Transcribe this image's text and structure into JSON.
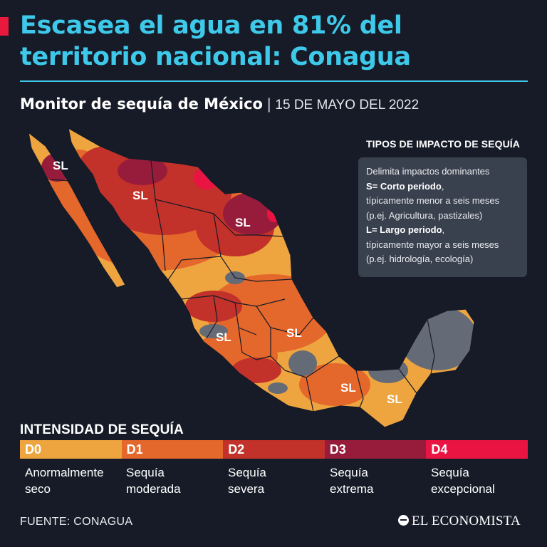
{
  "header": {
    "headline": "Escasea el agua en 81% del territorio nacional: Conagua",
    "subtitle": "Monitor de sequía de México",
    "separator": "|",
    "date": "15 DE MAYO DEL 2022"
  },
  "map": {
    "region_labels": [
      "SL",
      "SL",
      "SL",
      "SL",
      "SL",
      "SL",
      "SL"
    ]
  },
  "impact_types": {
    "title": "TIPOS DE IMPACTO DE SEQUÍA",
    "line1": "Delimita impactos dominantes",
    "short_label": "S= Corto periodo",
    "short_suffix": ",",
    "short_desc": "típicamente menor a seis meses",
    "short_examples": "(p.ej. Agricultura, pastizales)",
    "long_label": "L= Largo periodo",
    "long_suffix": ",",
    "long_desc": "típicamente mayor a seis meses",
    "long_examples": "(p.ej. hidrología, ecología)"
  },
  "legend": {
    "title": "INTENSIDAD DE SEQUÍA",
    "items": [
      {
        "code": "D0",
        "label_line1": "Anormalmente",
        "label_line2": "seco",
        "color": "#eea540"
      },
      {
        "code": "D1",
        "label_line1": "Sequía",
        "label_line2": "moderada",
        "color": "#e4672c"
      },
      {
        "code": "D2",
        "label_line1": "Sequía",
        "label_line2": "severa",
        "color": "#c2312a"
      },
      {
        "code": "D3",
        "label_line1": "Sequía",
        "label_line2": "extrema",
        "color": "#971c3c"
      },
      {
        "code": "D4",
        "label_line1": "Sequía",
        "label_line2": "excepcional",
        "color": "#ea1443"
      }
    ]
  },
  "colors": {
    "accent": "#3ec9ea",
    "accent_bar": "#e8193c",
    "background": "#161b27",
    "no_drought": "#646b77"
  },
  "footer": {
    "source": "FUENTE: CONAGUA",
    "brand": "EL ECONOMISTA",
    "brand_icon": "el-economista-logo-icon"
  }
}
